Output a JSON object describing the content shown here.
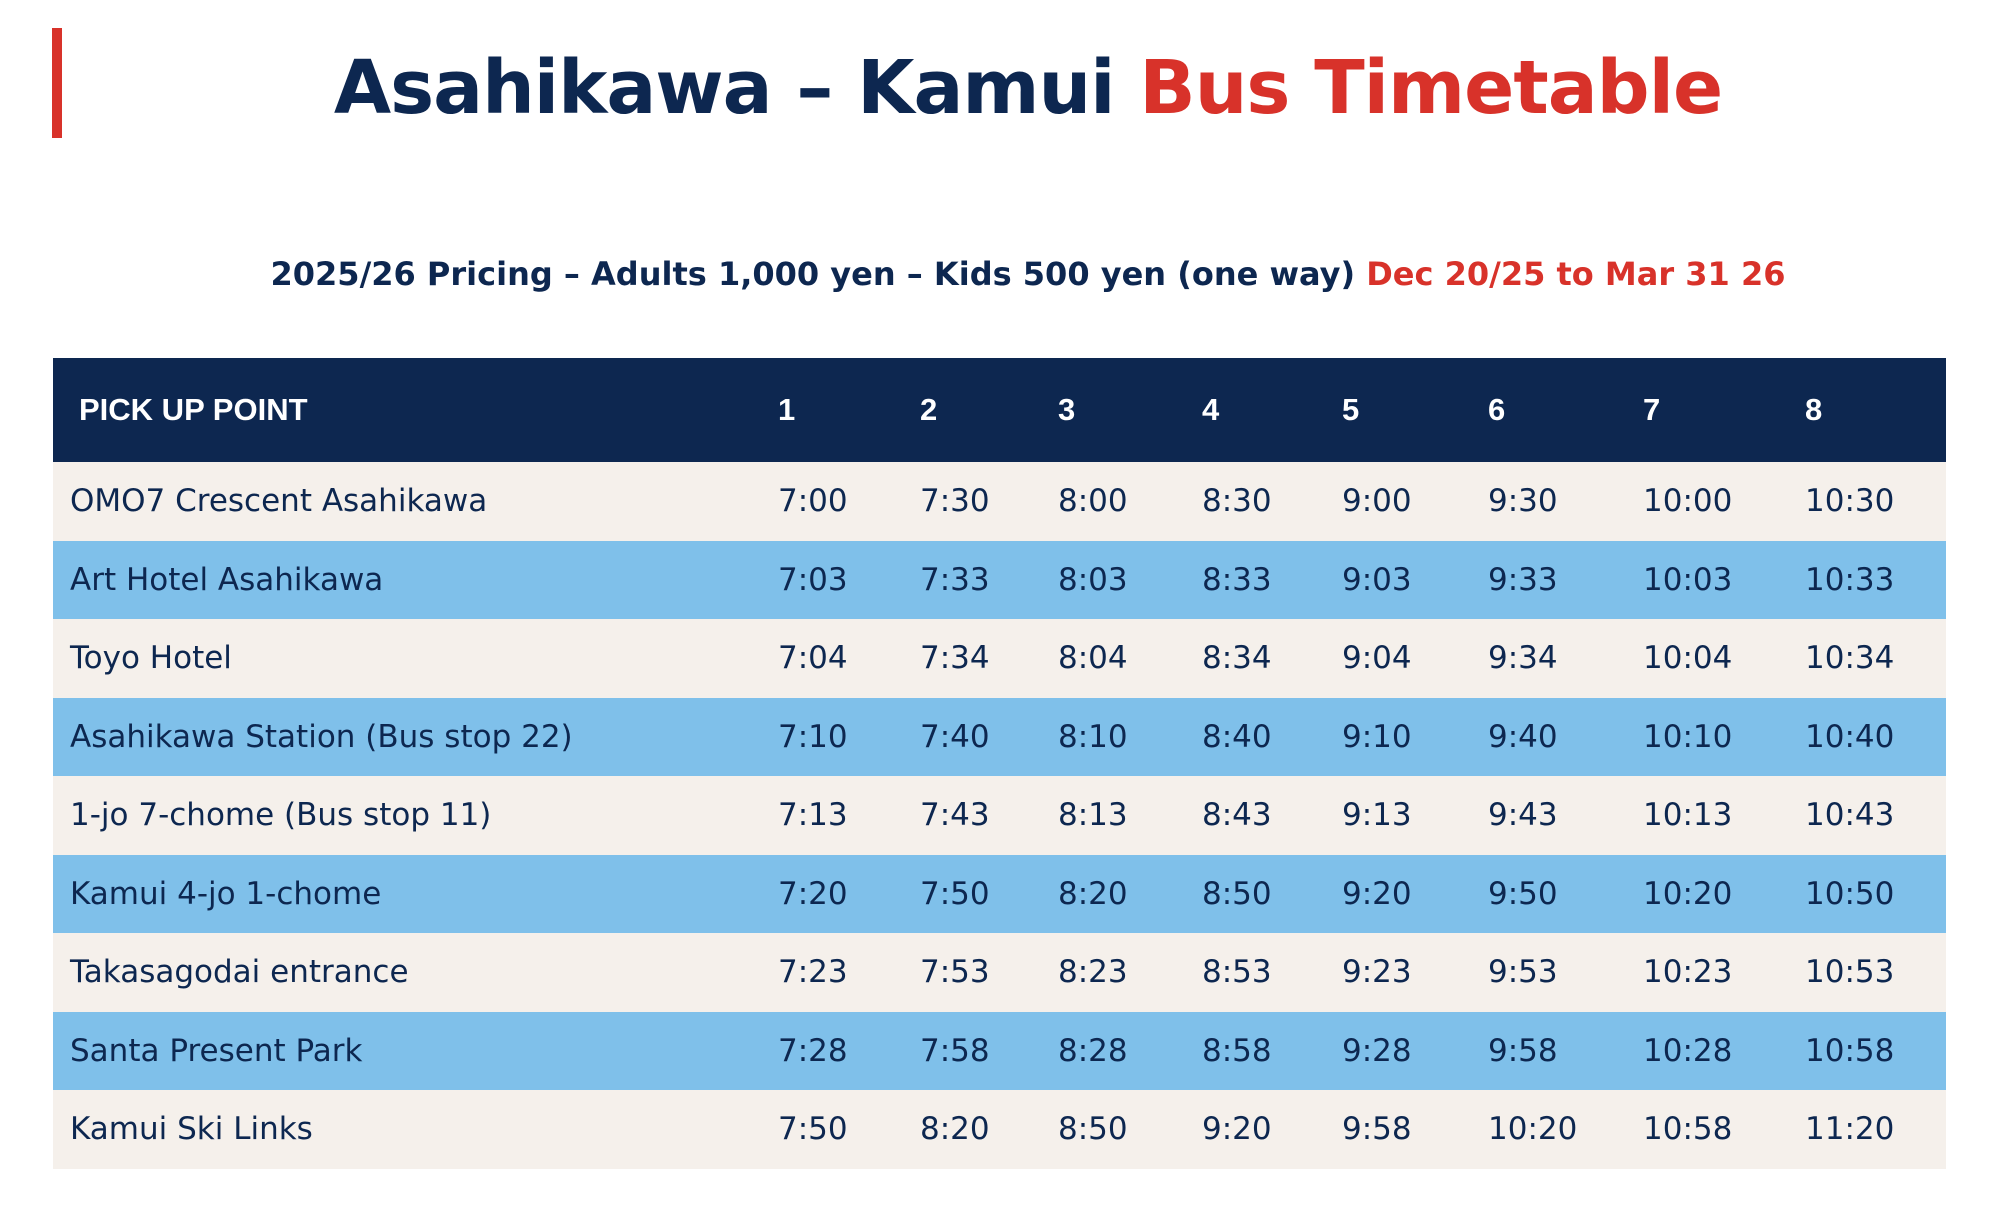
{
  "title": {
    "part1": "Asahikawa – Kamui ",
    "part2": "Bus Timetable"
  },
  "subtitle": {
    "pricing": "2025/26 Pricing – Adults 1,000 yen – Kids 500 yen (one way) ",
    "dates": "Dec 20/25 to Mar 31 26"
  },
  "colors": {
    "navy": "#0d2750",
    "red": "#d8322a",
    "row_light": "#f5f0eb",
    "row_blue": "#7fc0ea"
  },
  "table": {
    "headers": [
      "PICK UP POINT",
      "1",
      "2",
      "3",
      "4",
      "5",
      "6",
      "7",
      "8"
    ],
    "rows": [
      {
        "stop": "OMO7 Crescent Asahikawa",
        "times": [
          "7:00",
          "7:30",
          "8:00",
          "8:30",
          "9:00",
          "9:30",
          "10:00",
          "10:30"
        ]
      },
      {
        "stop": "Art Hotel Asahikawa",
        "times": [
          "7:03",
          "7:33",
          "8:03",
          "8:33",
          "9:03",
          "9:33",
          "10:03",
          "10:33"
        ]
      },
      {
        "stop": "Toyo Hotel",
        "times": [
          "7:04",
          "7:34",
          "8:04",
          "8:34",
          "9:04",
          "9:34",
          "10:04",
          "10:34"
        ]
      },
      {
        "stop": "Asahikawa Station (Bus stop 22)",
        "times": [
          "7:10",
          "7:40",
          "8:10",
          "8:40",
          "9:10",
          "9:40",
          "10:10",
          "10:40"
        ]
      },
      {
        "stop": "1-jo 7-chome (Bus stop 11)",
        "times": [
          "7:13",
          "7:43",
          "8:13",
          "8:43",
          "9:13",
          "9:43",
          "10:13",
          "10:43"
        ]
      },
      {
        "stop": "Kamui 4-jo 1-chome",
        "times": [
          "7:20",
          "7:50",
          "8:20",
          "8:50",
          "9:20",
          "9:50",
          "10:20",
          "10:50"
        ]
      },
      {
        "stop": "Takasagodai entrance",
        "times": [
          "7:23",
          "7:53",
          "8:23",
          "8:53",
          "9:23",
          "9:53",
          "10:23",
          "10:53"
        ]
      },
      {
        "stop": "Santa Present Park",
        "times": [
          "7:28",
          "7:58",
          "8:28",
          "8:58",
          "9:28",
          "9:58",
          "10:28",
          "10:58"
        ]
      },
      {
        "stop": "Kamui Ski Links",
        "times": [
          "7:50",
          "8:20",
          "8:50",
          "9:20",
          "9:58",
          "10:20",
          "10:58",
          "11:20"
        ]
      }
    ]
  }
}
